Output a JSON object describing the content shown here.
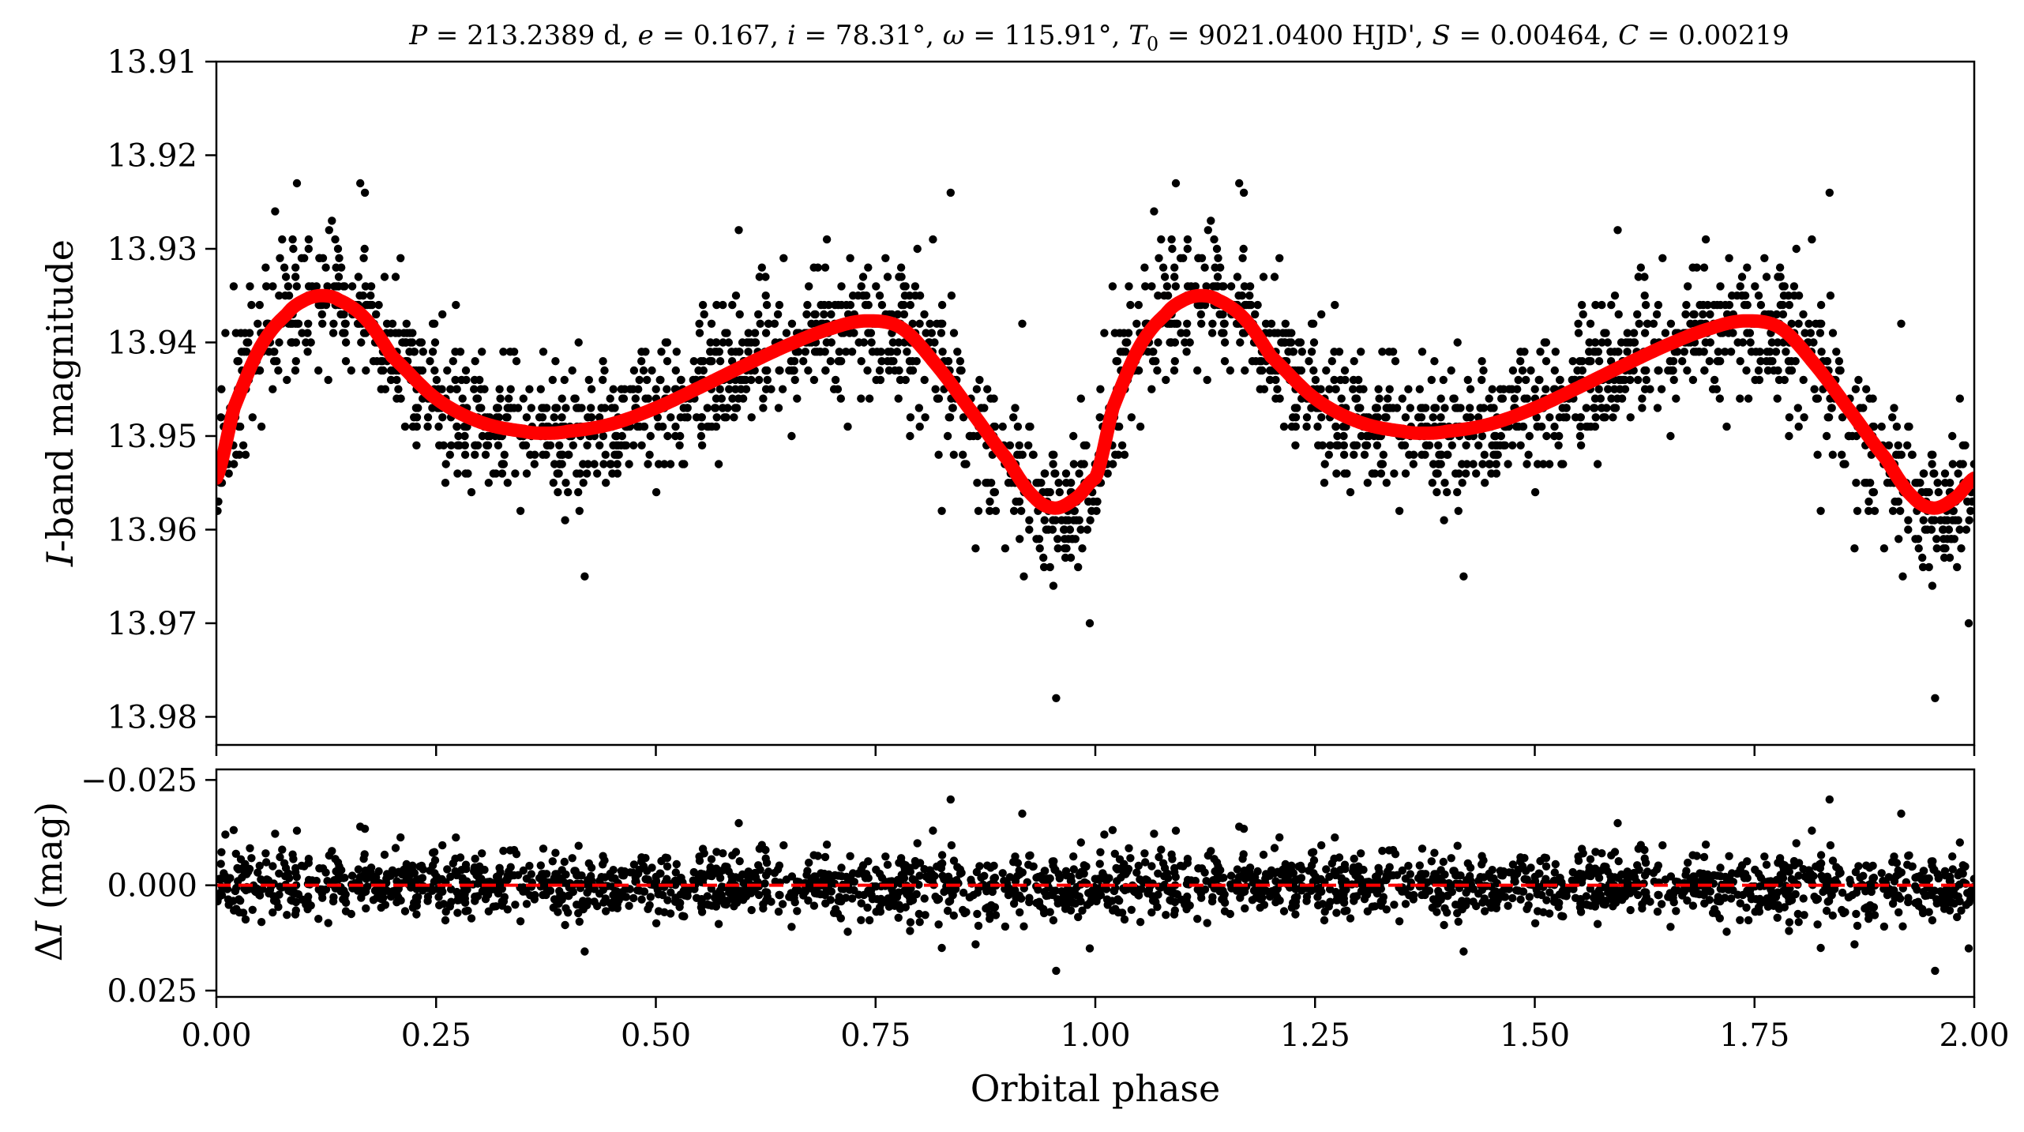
{
  "figure": {
    "title": "P = 213.2389 d, e = 0.167, i = 78.31°, ω = 115.91°, T0 = 9021.0400 HJD', S = 0.00464, C = 0.00219",
    "title_parts": {
      "P": "P",
      "P_value": " = 213.2389 d, ",
      "e": "e",
      "e_value": " = 0.167, ",
      "i": "i",
      "i_value": " = 78.31°, ",
      "omega": "ω",
      "omega_value": " = 115.91°, ",
      "T": "T",
      "T_sub": "0",
      "T_value": " = 9021.0400 HJD', ",
      "S": "S",
      "S_value": " = 0.00464, ",
      "C": "C",
      "C_value": " = 0.00219"
    },
    "colors": {
      "points": "#000000",
      "model": "#ff0000",
      "axes": "#000000",
      "background": "#ffffff"
    }
  },
  "chart_data": [
    {
      "type": "scatter",
      "panel": "top",
      "ylabel_italic": "I",
      "ylabel_rest": "-band magnitude",
      "xlim": [
        0.0,
        2.0
      ],
      "ylim": [
        13.983,
        13.91
      ],
      "y_inverted": true,
      "yticks": [
        "13.91",
        "13.92",
        "13.93",
        "13.94",
        "13.95",
        "13.96",
        "13.97",
        "13.98"
      ],
      "ytick_values": [
        13.91,
        13.92,
        13.93,
        13.94,
        13.95,
        13.96,
        13.97,
        13.98
      ],
      "grid": false,
      "legend": "none",
      "series": [
        {
          "kind": "observations",
          "marker": "filled-circle",
          "color": "#000000",
          "points_per_phase": 1200,
          "mean_scatter_mag": 0.005,
          "phase_range": [
            0.0,
            1.0
          ],
          "repeated_over_two_cycles": true
        },
        {
          "kind": "model",
          "style": "thick-line",
          "color": "#ff0000",
          "x": [
            0.0,
            0.02,
            0.05,
            0.08,
            0.1,
            0.12,
            0.14,
            0.17,
            0.2,
            0.25,
            0.3,
            0.35,
            0.375,
            0.4,
            0.45,
            0.5,
            0.55,
            0.6,
            0.65,
            0.7,
            0.74,
            0.78,
            0.82,
            0.86,
            0.9,
            0.93,
            0.955,
            0.98,
            1.0
          ],
          "y": [
            13.9545,
            13.947,
            13.9405,
            13.937,
            13.9355,
            13.935,
            13.9355,
            13.9375,
            13.9415,
            13.946,
            13.9485,
            13.9495,
            13.9497,
            13.9495,
            13.9487,
            13.947,
            13.9448,
            13.9425,
            13.9403,
            13.9385,
            13.9377,
            13.9385,
            13.9425,
            13.9475,
            13.9525,
            13.9565,
            13.9577,
            13.9565,
            13.9545
          ]
        }
      ]
    },
    {
      "type": "scatter",
      "panel": "bottom",
      "xlabel": "Orbital phase",
      "ylabel_delta": "Δ",
      "ylabel_italic": "I",
      "ylabel_rest": " (mag)",
      "xlim": [
        0.0,
        2.0
      ],
      "ylim": [
        0.0265,
        -0.0275
      ],
      "y_inverted": true,
      "xticks": [
        "0.00",
        "0.25",
        "0.50",
        "0.75",
        "1.00",
        "1.25",
        "1.50",
        "1.75",
        "2.00"
      ],
      "xtick_values": [
        0.0,
        0.25,
        0.5,
        0.75,
        1.0,
        1.25,
        1.5,
        1.75,
        2.0
      ],
      "yticks": [
        "−0.025",
        "0.000",
        "0.025"
      ],
      "ytick_values": [
        -0.025,
        0.0,
        0.025
      ],
      "grid": false,
      "legend": "none",
      "series": [
        {
          "kind": "residuals",
          "marker": "filled-circle",
          "color": "#000000",
          "mean_scatter_mag": 0.004
        },
        {
          "kind": "zero-line",
          "style": "dashed",
          "color": "#ff0000",
          "y": 0.0
        }
      ]
    }
  ]
}
